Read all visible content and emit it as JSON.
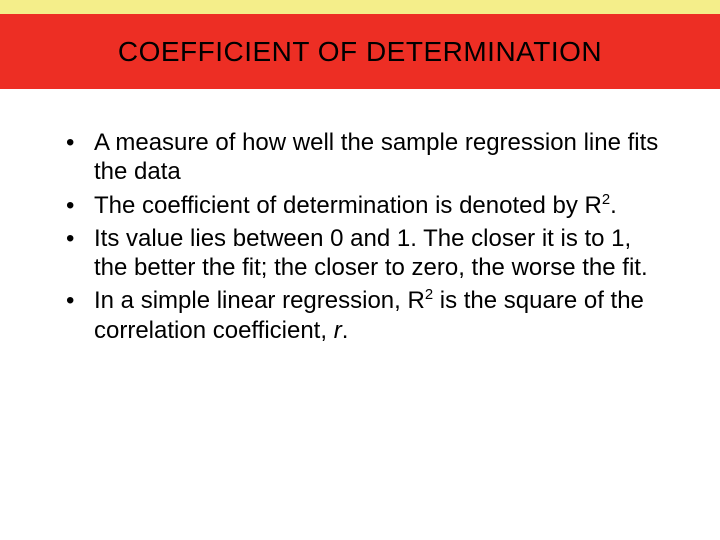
{
  "colors": {
    "top_bar": "#f4ee8a",
    "header_band": "#ed2e24",
    "title_text": "#000000",
    "body_text": "#000000",
    "background": "#ffffff"
  },
  "typography": {
    "title_fontsize": 28,
    "body_fontsize": 24,
    "font_family": "Arial"
  },
  "title": "COEFFICIENT OF DETERMINATION",
  "bullets": [
    {
      "text_html": "A measure of how well the sample regression line fits the data"
    },
    {
      "text_html": "The coefficient of determination is denoted by R<sup>2</sup>."
    },
    {
      "text_html": "Its value lies between 0 and 1. The closer it is to 1, the better the fit; the closer to zero, the worse the fit."
    },
    {
      "text_html": "In a simple linear regression, R<sup>2</sup> is the square of the correlation coefficient, <em class=\"ital\">r</em>."
    }
  ]
}
